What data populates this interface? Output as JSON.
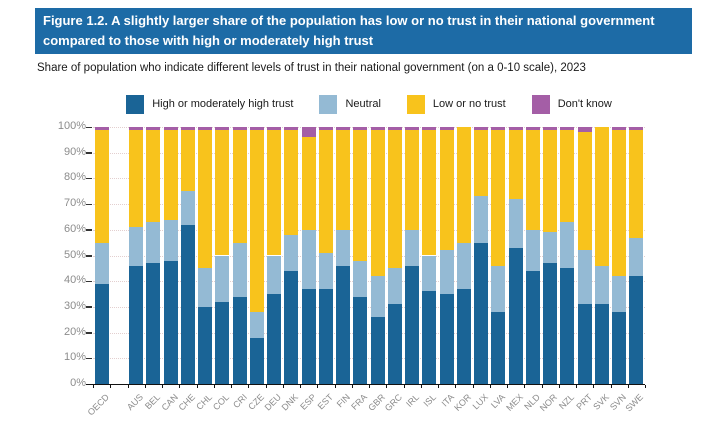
{
  "figure": {
    "title": "Figure 1.2. A slightly larger share of the population has low or no trust in their national government compared to those with high or moderately high trust",
    "subtitle": "Share of population who indicate different levels of trust in their national government (on a 0-10 scale), 2023"
  },
  "colors": {
    "banner_bg": "#1d6ba6",
    "banner_text": "#ffffff",
    "high_trust": "#1a6496",
    "neutral": "#94bad4",
    "low_trust": "#f8c31c",
    "dont_know": "#a45ea6",
    "axis_text": "#8c8c8c",
    "axis_line": "#111111",
    "gridline": "#e3cfcf"
  },
  "chart_data": {
    "type": "bar",
    "stacking": "percent",
    "title": "Figure 1.2. A slightly larger share of the population has low or no trust in their national government compared to those with high or moderately high trust",
    "subtitle": "Share of population who indicate different levels of trust in their national government (on a 0-10 scale), 2023",
    "legend_position": "top",
    "grid": "horizontal-dotted",
    "ylim": [
      0,
      100
    ],
    "y_tick_labels": [
      "0%",
      "10%",
      "20%",
      "30%",
      "40%",
      "50%",
      "60%",
      "70%",
      "80%",
      "90%",
      "100%"
    ],
    "gap_after_first_category": true,
    "categories": [
      "OECD",
      "AUS",
      "BEL",
      "CAN",
      "CHE",
      "CHL",
      "COL",
      "CRI",
      "CZE",
      "DEU",
      "DNK",
      "ESP",
      "EST",
      "FIN",
      "FRA",
      "GBR",
      "GRC",
      "IRL",
      "ISL",
      "ITA",
      "KOR",
      "LUX",
      "LVA",
      "MEX",
      "NLD",
      "NOR",
      "NZL",
      "PRT",
      "SVK",
      "SVN",
      "SWE"
    ],
    "series": [
      {
        "name": "High or moderately high trust",
        "color": "#1a6496",
        "values": [
          39,
          46,
          47,
          48,
          62,
          30,
          32,
          34,
          18,
          35,
          44,
          37,
          37,
          46,
          34,
          26,
          31,
          46,
          36,
          35,
          37,
          55,
          28,
          53,
          44,
          47,
          45,
          31,
          31,
          28,
          42
        ]
      },
      {
        "name": "Neutral",
        "color": "#94bad4",
        "values": [
          16,
          15,
          16,
          16,
          13,
          15,
          18,
          21,
          10,
          15,
          14,
          23,
          14,
          14,
          14,
          16,
          14,
          14,
          14,
          17,
          18,
          18,
          18,
          19,
          16,
          12,
          18,
          21,
          15,
          14,
          15
        ]
      },
      {
        "name": "Low or no trust",
        "color": "#f8c31c",
        "values": [
          44,
          38,
          36,
          35,
          24,
          54,
          49,
          44,
          71,
          49,
          41,
          36,
          48,
          39,
          51,
          57,
          54,
          39,
          49,
          47,
          45,
          26,
          53,
          27,
          39,
          40,
          36,
          46,
          54,
          57,
          42
        ]
      },
      {
        "name": "Don't know",
        "color": "#a45ea6",
        "values": [
          1,
          1,
          1,
          1,
          1,
          1,
          1,
          1,
          1,
          1,
          1,
          4,
          1,
          1,
          1,
          1,
          1,
          1,
          1,
          1,
          0,
          1,
          1,
          1,
          1,
          1,
          1,
          2,
          0,
          1,
          1
        ]
      }
    ]
  }
}
